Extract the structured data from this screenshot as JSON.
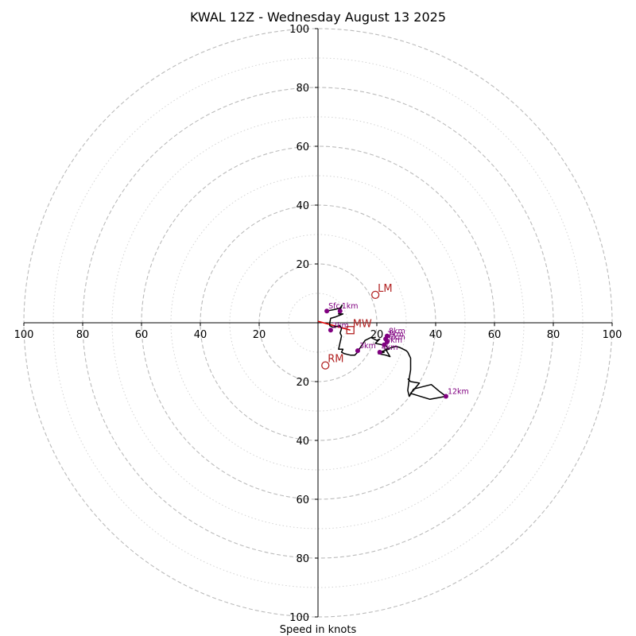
{
  "chart_data": {
    "type": "hodograph",
    "title": "KWAL 12Z - Wednesday August 13 2025",
    "xlabel": "Speed in knots",
    "ylabel": "",
    "xlim": [
      -100,
      100
    ],
    "ylim": [
      -100,
      100
    ],
    "ring_speeds_dashed": [
      20,
      40,
      60,
      80,
      100
    ],
    "ring_speeds_dotted": [
      10,
      30,
      50,
      70,
      90
    ],
    "x_tick_labels": [
      "100",
      "80",
      "60",
      "40",
      "20",
      "20",
      "40",
      "60",
      "80",
      "100"
    ],
    "y_tick_labels": [
      "100",
      "80",
      "60",
      "40",
      "20",
      "20",
      "40",
      "60",
      "80",
      "100"
    ],
    "grid": true,
    "colors": {
      "trace": "#000000",
      "height_points": "#800080",
      "storm_motion": "#b22222",
      "shear_segment": "#dd0000",
      "ring_dashed": "#bbbbbb",
      "ring_dotted": "#d3d3d3",
      "axes": "#000000"
    },
    "trace": {
      "u": [
        3.0,
        5.5,
        7.5,
        8.2,
        7.0,
        8.5,
        6.0,
        4.3,
        4.0,
        4.0,
        5.0,
        7.5,
        8.0,
        7.5,
        8.0,
        7.0,
        8.5,
        8.0,
        9.0,
        11.0,
        12.5,
        13.5,
        14.0,
        15.0,
        16.0,
        18.0,
        20.0,
        21.0,
        19.5,
        22.0,
        22.5,
        24.0,
        21.0,
        22.5,
        20.5,
        23.0,
        24.5,
        23.0,
        26.5,
        28.0,
        30.0,
        30.5,
        31.5,
        31.5,
        31.0,
        30.5,
        31.0,
        32.5,
        38.5,
        41.5,
        43.5,
        38.0,
        31.5,
        34.5,
        31.5,
        30.5
      ],
      "v": [
        4.0,
        4.5,
        5.0,
        6.0,
        3.0,
        3.0,
        2.0,
        1.5,
        0.0,
        -1.0,
        -1.5,
        -1.0,
        -2.0,
        -3.5,
        -4.5,
        -9.0,
        -9.0,
        -10.0,
        -10.5,
        -11.0,
        -11.0,
        -10.0,
        -9.0,
        -7.5,
        -6.0,
        -5.0,
        -6.0,
        -5.5,
        -7.0,
        -7.5,
        -7.0,
        -9.0,
        -10.0,
        -10.0,
        -10.5,
        -11.0,
        -11.5,
        -9.0,
        -8.0,
        -8.5,
        -9.5,
        -10.0,
        -12.0,
        -16.0,
        -19.0,
        -23.0,
        -25.0,
        -22.5,
        -21.0,
        -23.5,
        -25.0,
        -26.0,
        -24.0,
        -20.5,
        -20.0,
        -19.0
      ]
    },
    "height_points": [
      {
        "label": "Sfc",
        "u": 3.0,
        "v": 4.0
      },
      {
        "label": "1km",
        "u": 7.5,
        "v": 4.0
      },
      {
        "label": "2km",
        "u": 4.3,
        "v": -2.5
      },
      {
        "label": "3km",
        "u": 13.5,
        "v": -9.5
      },
      {
        "label": "4km",
        "u": 21.0,
        "v": -10.0
      },
      {
        "label": "5km",
        "u": 22.5,
        "v": -7.5
      },
      {
        "label": "6km",
        "u": 23.5,
        "v": -6.5
      },
      {
        "label": "7km",
        "u": 23.0,
        "v": -5.5
      },
      {
        "label": "8km",
        "u": 23.5,
        "v": -4.5
      },
      {
        "label": "12km",
        "u": 43.5,
        "v": -25.0
      }
    ],
    "storm_motions": [
      {
        "label": "LM",
        "marker": "circle",
        "u": 19.5,
        "v": 9.5
      },
      {
        "label": "MW",
        "marker": "square",
        "u": 11.0,
        "v": -2.5
      },
      {
        "label": "RM",
        "marker": "circle",
        "u": 2.5,
        "v": -14.5
      }
    ],
    "shear_segment": {
      "u": [
        0.0,
        11.0
      ],
      "v": [
        0.5,
        -2.5
      ]
    }
  }
}
